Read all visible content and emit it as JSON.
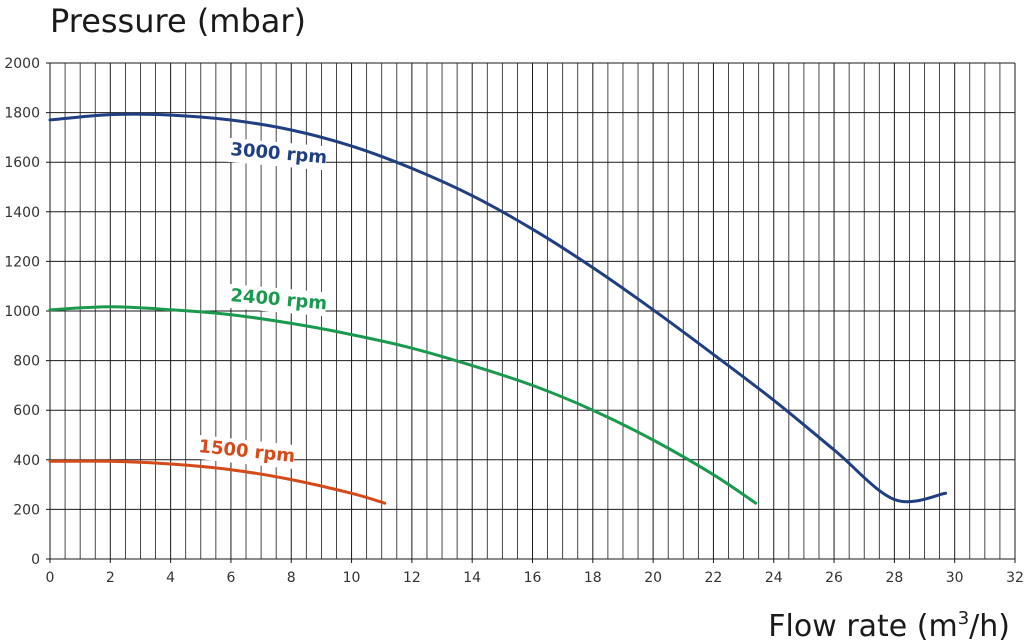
{
  "chart_data": {
    "type": "line",
    "title": "",
    "ylabel": "Pressure (mbar)",
    "xlabel": "Flow rate (m³/h)",
    "xlabel_main": "Flow rate (m",
    "xlabel_sup": "3",
    "xlabel_end": "/h)",
    "xlim": [
      0,
      32
    ],
    "ylim": [
      0,
      2000
    ],
    "x_ticks": [
      0,
      2,
      4,
      6,
      8,
      10,
      12,
      14,
      16,
      18,
      20,
      22,
      24,
      26,
      28,
      30,
      32
    ],
    "y_ticks": [
      0,
      200,
      400,
      600,
      800,
      1000,
      1200,
      1400,
      1600,
      1800,
      2000
    ],
    "x_tick_labels": [
      "0",
      "2",
      "4",
      "6",
      "8",
      "10",
      "12",
      "14",
      "16",
      "18",
      "20",
      "22",
      "24",
      "26",
      "28",
      "30",
      "32"
    ],
    "y_tick_labels": [
      "0",
      "200",
      "400",
      "600",
      "800",
      "1000",
      "1200",
      "1400",
      "1600",
      "1800",
      "2000"
    ],
    "grid": true,
    "minor_x_step": 0.5,
    "series": [
      {
        "name": "3000 rpm",
        "color": "#1f3f82",
        "points": [
          [
            0,
            1770
          ],
          [
            2,
            1792
          ],
          [
            4,
            1790
          ],
          [
            6,
            1770
          ],
          [
            8,
            1730
          ],
          [
            10,
            1665
          ],
          [
            12,
            1575
          ],
          [
            14,
            1465
          ],
          [
            16,
            1330
          ],
          [
            18,
            1175
          ],
          [
            20,
            1005
          ],
          [
            22,
            825
          ],
          [
            24,
            640
          ],
          [
            26,
            440
          ],
          [
            28,
            240
          ],
          [
            29.7,
            265
          ]
        ]
      },
      {
        "name": "2400 rpm",
        "color": "#1a9a4e",
        "points": [
          [
            0,
            1005
          ],
          [
            2,
            1017
          ],
          [
            4,
            1005
          ],
          [
            6,
            985
          ],
          [
            8,
            950
          ],
          [
            10,
            905
          ],
          [
            12,
            850
          ],
          [
            14,
            780
          ],
          [
            16,
            700
          ],
          [
            18,
            600
          ],
          [
            20,
            480
          ],
          [
            22,
            340
          ],
          [
            23.4,
            225
          ]
        ]
      },
      {
        "name": "1500 rpm",
        "color": "#d44a1a",
        "points": [
          [
            0,
            394
          ],
          [
            2,
            394
          ],
          [
            4,
            383
          ],
          [
            6,
            360
          ],
          [
            8,
            320
          ],
          [
            10,
            265
          ],
          [
            11.1,
            225
          ]
        ]
      }
    ]
  }
}
